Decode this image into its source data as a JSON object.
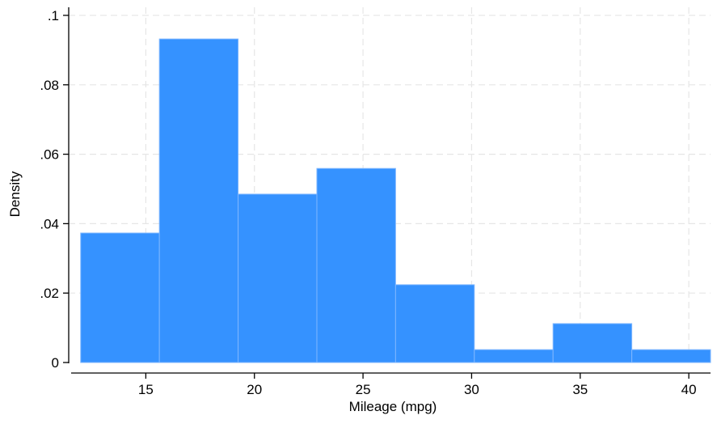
{
  "chart_data": {
    "type": "bar",
    "title": "",
    "xlabel": "Mileage (mpg)",
    "ylabel": "Density",
    "bins": [
      {
        "x0": 12.0,
        "x1": 15.625,
        "value": 0.0373
      },
      {
        "x0": 15.625,
        "x1": 19.25,
        "value": 0.0932
      },
      {
        "x0": 19.25,
        "x1": 22.875,
        "value": 0.0485
      },
      {
        "x0": 22.875,
        "x1": 26.5,
        "value": 0.0559
      },
      {
        "x0": 26.5,
        "x1": 30.125,
        "value": 0.0224
      },
      {
        "x0": 30.125,
        "x1": 33.75,
        "value": 0.0037
      },
      {
        "x0": 33.75,
        "x1": 37.375,
        "value": 0.0112
      },
      {
        "x0": 37.375,
        "x1": 41.0,
        "value": 0.0037
      }
    ],
    "xlim": [
      11.45,
      41.0
    ],
    "ylim": [
      0,
      0.1
    ],
    "xticks": [
      15,
      20,
      25,
      30,
      35,
      40
    ],
    "xtick_labels": [
      "15",
      "20",
      "25",
      "30",
      "35",
      "40"
    ],
    "yticks": [
      0,
      0.02,
      0.04,
      0.06,
      0.08,
      0.1
    ],
    "ytick_labels": [
      "0",
      ".02",
      ".04",
      ".06",
      ".08",
      ".1"
    ],
    "grid": true,
    "colors": {
      "bar_fill": "#3592ff",
      "bar_edge": "#7fb7ff",
      "grid": "#e6e6e6",
      "axis": "#000000",
      "text": "#000000"
    }
  }
}
